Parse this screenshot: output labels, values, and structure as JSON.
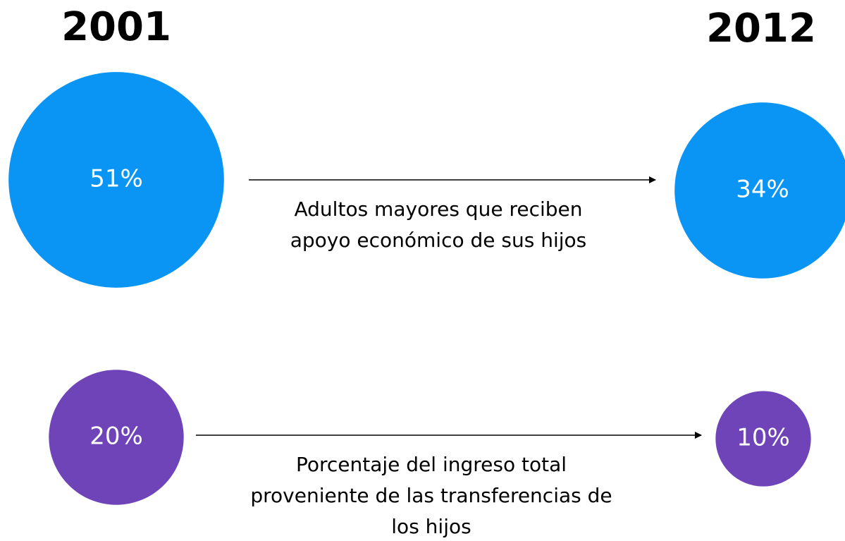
{
  "years": [
    "2001",
    "2012"
  ],
  "rows": [
    {
      "label_lines": [
        "Adultos mayores que reciben",
        "apoyo económico de sus hijos"
      ],
      "color": "#0a95f5",
      "values": [
        51,
        34
      ],
      "value_labels": [
        "51%",
        "34%"
      ]
    },
    {
      "label_lines": [
        "Porcentaje del ingreso total",
        "proveniente de las transferencias de",
        "los hijos"
      ],
      "color": "#6e44b8",
      "values": [
        20,
        10
      ],
      "value_labels": [
        "20%",
        "10%"
      ]
    }
  ]
}
